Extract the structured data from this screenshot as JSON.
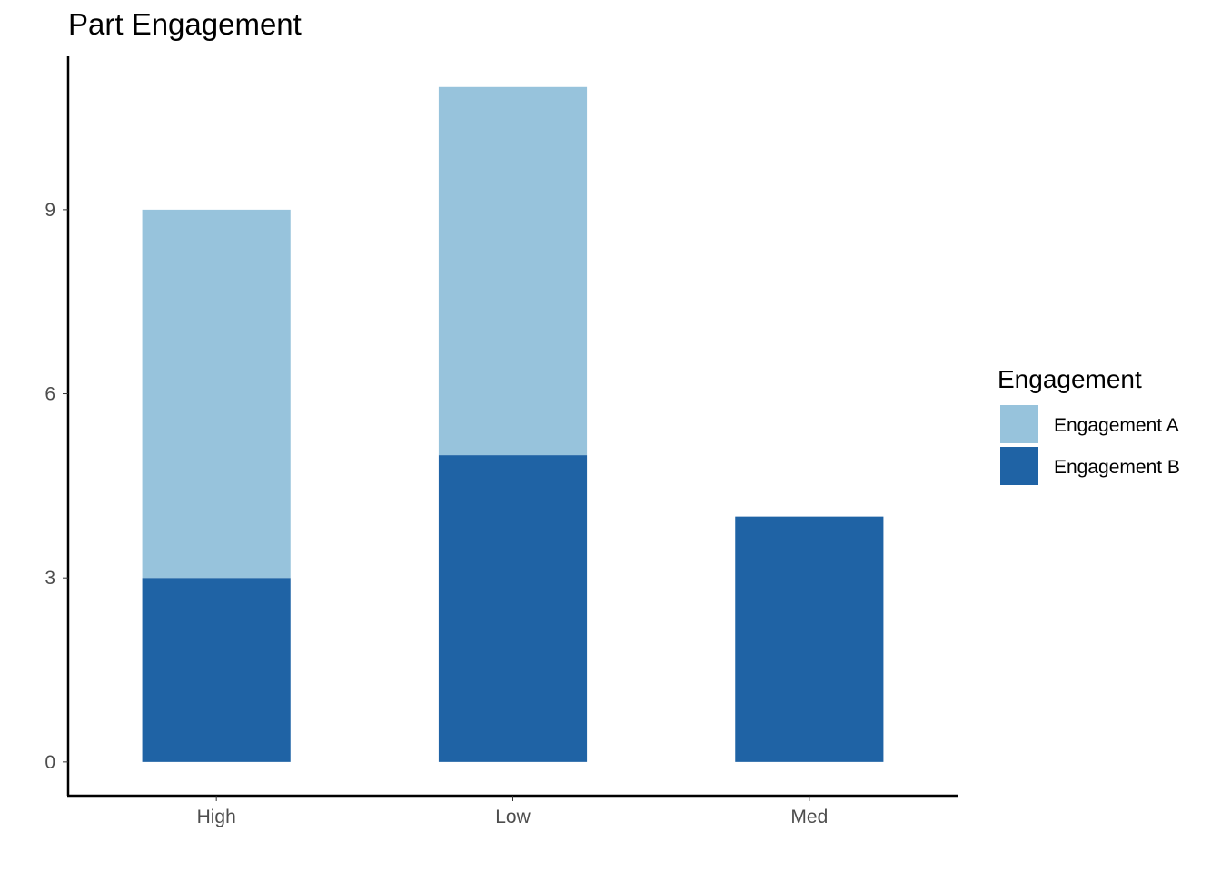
{
  "chart_data": {
    "type": "bar",
    "stacked": true,
    "title": "Part Engagement",
    "xlabel": "",
    "ylabel": "",
    "categories": [
      "High",
      "Low",
      "Med"
    ],
    "series": [
      {
        "name": "Engagement B",
        "values": [
          3,
          5,
          4
        ],
        "color": "#1f63a5"
      },
      {
        "name": "Engagement A",
        "values": [
          6,
          6,
          0
        ],
        "color": "#97c3dc"
      }
    ],
    "ylim": [
      -0.55,
      11.5
    ],
    "yticks": [
      0,
      3,
      6,
      9
    ],
    "grid": false,
    "legend": {
      "title": "Engagement",
      "position": "right",
      "entries": [
        {
          "label": "Engagement A",
          "color": "#97c3dc"
        },
        {
          "label": "Engagement B",
          "color": "#1f63a5"
        }
      ]
    }
  }
}
